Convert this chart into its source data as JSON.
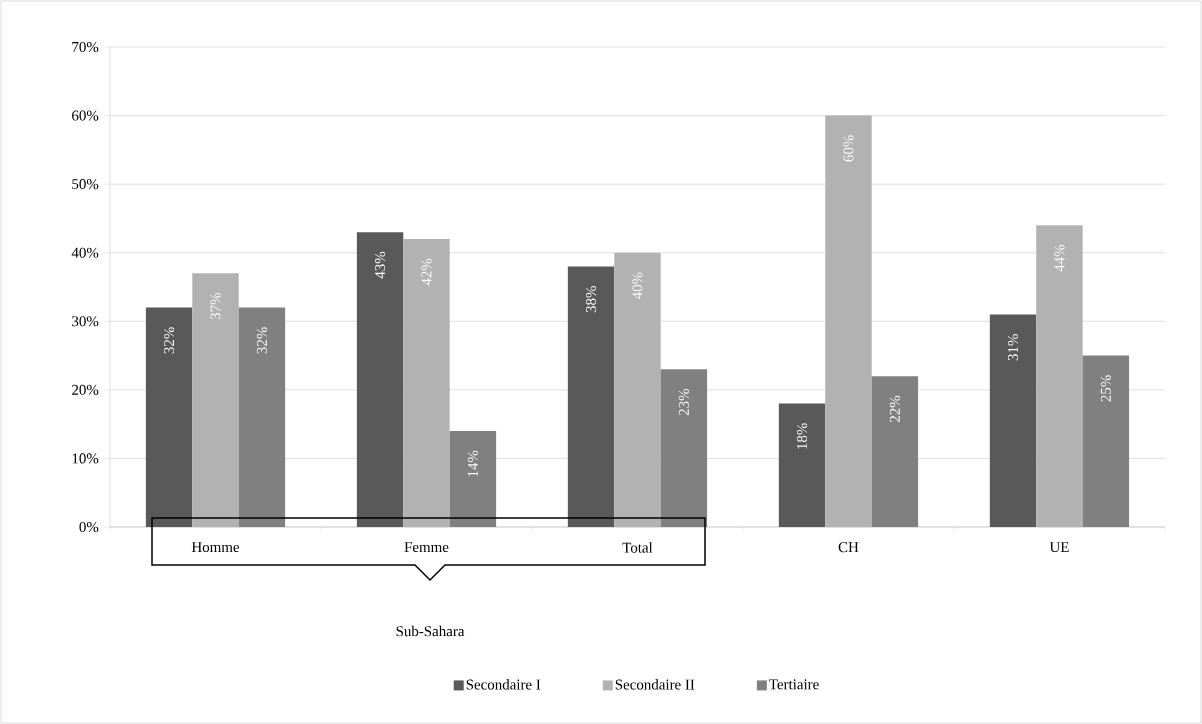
{
  "chart_data": {
    "type": "bar",
    "categories": [
      "Homme",
      "Femme",
      "Total",
      "CH",
      "UE"
    ],
    "series": [
      {
        "name": "Secondaire I",
        "color": "#595959",
        "values": [
          32,
          43,
          38,
          18,
          31
        ],
        "value_labels": [
          "32%",
          "43%",
          "38%",
          "18%",
          "31%"
        ]
      },
      {
        "name": "Secondaire II",
        "color": "#b2b2b2",
        "values": [
          37,
          42,
          40,
          60,
          44
        ],
        "value_labels": [
          "37%",
          "42%",
          "40%",
          "60%",
          "44%"
        ]
      },
      {
        "name": "Tertiaire",
        "color": "#808080",
        "values": [
          32,
          14,
          23,
          22,
          25
        ],
        "value_labels": [
          "32%",
          "14%",
          "23%",
          "22%",
          "25%"
        ]
      }
    ],
    "ylim": [
      0,
      70
    ],
    "yticks": [
      {
        "value": 0,
        "label": "0%"
      },
      {
        "value": 10,
        "label": "10%"
      },
      {
        "value": 20,
        "label": "20%"
      },
      {
        "value": 30,
        "label": "30%"
      },
      {
        "value": 40,
        "label": "40%"
      },
      {
        "value": 50,
        "label": "50%"
      },
      {
        "value": 60,
        "label": "60%"
      },
      {
        "value": 70,
        "label": "70%"
      }
    ],
    "grid": "y",
    "legend": "bottom",
    "annotations": [
      "Sub-Sahara"
    ]
  }
}
